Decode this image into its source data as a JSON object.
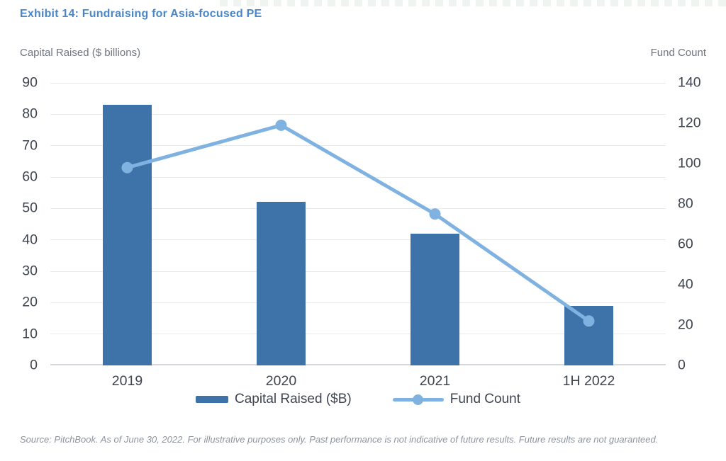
{
  "page": {
    "title": "Exhibit 14: Fundraising for Asia-focused PE",
    "source_note": "Source: PitchBook. As of June 30, 2022. For illustrative purposes only. Past performance is not indicative of future results. Future results are not guaranteed."
  },
  "axes": {
    "left_header": "Capital Raised ($ billions)",
    "right_header": "Fund Count"
  },
  "legend": {
    "items": [
      {
        "label": "Capital Raised ($B)",
        "marker": "bar-swatch",
        "color": "#3e73aa"
      },
      {
        "label": "Fund Count",
        "marker": "line-dot",
        "color": "#7fb2e1"
      }
    ]
  },
  "colors": {
    "title": "#4b87c6",
    "bar": "#3e73aa",
    "line": "#7fb2e1",
    "tick_text": "#3e4450",
    "axis_header_text": "#6f7681",
    "source_text": "#8d939e",
    "gridline": "#e9eaeb",
    "baseline": "#d5d8dc"
  },
  "chart_data": {
    "type": "bar",
    "subtype": "combo-bar-line",
    "title": "Exhibit 14: Fundraising for Asia-focused PE",
    "categories": [
      "2019",
      "2020",
      "2021",
      "1H 2022"
    ],
    "series": [
      {
        "name": "Capital Raised ($B)",
        "type": "bar",
        "axis": "left",
        "color": "#3e73aa",
        "values": [
          83,
          52,
          42,
          19
        ]
      },
      {
        "name": "Fund Count",
        "type": "line",
        "axis": "right",
        "color": "#7fb2e1",
        "values": [
          98,
          119,
          75,
          22
        ]
      }
    ],
    "left_axis": {
      "label": "Capital Raised ($ billions)",
      "min": 0,
      "max": 90,
      "tick_interval": 10,
      "ticks": [
        0,
        10,
        20,
        30,
        40,
        50,
        60,
        70,
        80,
        90
      ]
    },
    "right_axis": {
      "label": "Fund Count",
      "min": 0,
      "max": 140,
      "tick_interval": 20,
      "ticks": [
        0,
        20,
        40,
        60,
        80,
        100,
        120,
        140
      ]
    },
    "grid": true,
    "legend_position": "bottom"
  }
}
